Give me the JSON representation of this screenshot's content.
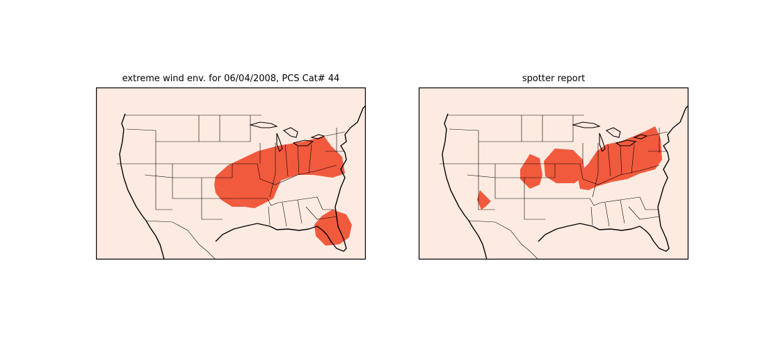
{
  "panels": [
    {
      "id": "left",
      "title": "extreme wind env. for 06/04/2008, PCS Cat# 44"
    },
    {
      "id": "right",
      "title": "spotter report"
    }
  ],
  "colors": {
    "background": "#fdebe2",
    "high_probability": "#f25a3e",
    "lines": "#000000"
  }
}
